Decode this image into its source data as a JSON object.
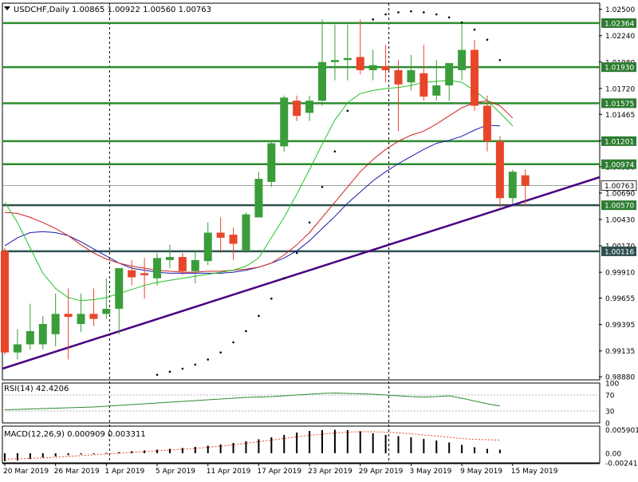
{
  "header": {
    "symbol": "USDCHF,Daily",
    "ohlc": "1.00865 1.00922 1.00560 1.00763",
    "menu_icon": "triangle-down-icon"
  },
  "colors": {
    "background": "#ffffff",
    "grid": "#000000",
    "bull": "#3a9d3a",
    "bear": "#e8462a",
    "ma_fast": "#22c422",
    "ma_mid": "#cc2222",
    "ma_slow": "#1a1aaa",
    "level": "#2e8b2e",
    "level_dark": "#2f4f4f",
    "trendline": "#4b0082",
    "sar": "#000000",
    "price_tag": "#2e7d32",
    "current_tag": "#ffffff"
  },
  "chart_data": [
    {
      "type": "candlestick",
      "title": "USDCHF,Daily",
      "ylim": [
        0.9885,
        1.0256
      ],
      "y_ticks": [
        "1.02500",
        "1.02240",
        "1.01980",
        "1.01720",
        "1.01465",
        "1.01205",
        "1.00950",
        "1.00690",
        "1.00430",
        "1.00170",
        "0.99910",
        "0.99655",
        "0.99395",
        "0.99135",
        "0.98880"
      ],
      "x_labels": [
        "20 Mar 2019",
        "26 Mar 2019",
        "1 Apr 2019",
        "5 Apr 2019",
        "11 Apr 2019",
        "17 Apr 2019",
        "23 Apr 2019",
        "29 Apr 2019",
        "3 May 2019",
        "9 May 2019",
        "15 May 2019"
      ],
      "candles": [
        {
          "o": 1.0012,
          "h": 1.0015,
          "l": 0.991,
          "c": 0.9912
        },
        {
          "o": 0.9912,
          "h": 0.9935,
          "l": 0.9905,
          "c": 0.992
        },
        {
          "o": 0.992,
          "h": 0.996,
          "l": 0.9915,
          "c": 0.9933
        },
        {
          "o": 0.992,
          "h": 0.9948,
          "l": 0.9915,
          "c": 0.994
        },
        {
          "o": 0.993,
          "h": 0.997,
          "l": 0.9918,
          "c": 0.995
        },
        {
          "o": 0.995,
          "h": 0.9975,
          "l": 0.9905,
          "c": 0.9947
        },
        {
          "o": 0.994,
          "h": 0.997,
          "l": 0.9932,
          "c": 0.995
        },
        {
          "o": 0.995,
          "h": 0.9975,
          "l": 0.9938,
          "c": 0.9945
        },
        {
          "o": 0.995,
          "h": 0.9985,
          "l": 0.9945,
          "c": 0.9955
        },
        {
          "o": 0.9955,
          "h": 0.9995,
          "l": 0.993,
          "c": 0.9995
        },
        {
          "o": 0.9993,
          "h": 1.0003,
          "l": 0.9978,
          "c": 0.9986
        },
        {
          "o": 0.999,
          "h": 1.0005,
          "l": 0.9965,
          "c": 0.9988
        },
        {
          "o": 0.9985,
          "h": 1.001,
          "l": 0.9978,
          "c": 1.0005
        },
        {
          "o": 1.0003,
          "h": 1.0018,
          "l": 0.9995,
          "c": 1.0006
        },
        {
          "o": 1.0006,
          "h": 1.001,
          "l": 0.9988,
          "c": 0.9992
        },
        {
          "o": 0.9992,
          "h": 1.0012,
          "l": 0.998,
          "c": 1.0003
        },
        {
          "o": 1.0002,
          "h": 1.004,
          "l": 0.9998,
          "c": 1.003
        },
        {
          "o": 1.003,
          "h": 1.0045,
          "l": 1.001,
          "c": 1.0025
        },
        {
          "o": 1.0028,
          "h": 1.0035,
          "l": 1.0003,
          "c": 1.0019
        },
        {
          "o": 1.0012,
          "h": 1.005,
          "l": 1.001,
          "c": 1.0048
        },
        {
          "o": 1.0045,
          "h": 1.009,
          "l": 1.0045,
          "c": 1.0083
        },
        {
          "o": 1.008,
          "h": 1.012,
          "l": 1.0075,
          "c": 1.0118
        },
        {
          "o": 1.0115,
          "h": 1.0165,
          "l": 1.011,
          "c": 1.0163
        },
        {
          "o": 1.016,
          "h": 1.0165,
          "l": 1.014,
          "c": 1.0145
        },
        {
          "o": 1.0148,
          "h": 1.0165,
          "l": 1.014,
          "c": 1.016
        },
        {
          "o": 1.016,
          "h": 1.024,
          "l": 1.0155,
          "c": 1.0198
        },
        {
          "o": 1.0198,
          "h": 1.0235,
          "l": 1.018,
          "c": 1.02
        },
        {
          "o": 1.02,
          "h": 1.0235,
          "l": 1.018,
          "c": 1.0202
        },
        {
          "o": 1.0203,
          "h": 1.024,
          "l": 1.0186,
          "c": 1.019
        },
        {
          "o": 1.019,
          "h": 1.021,
          "l": 1.018,
          "c": 1.0195
        },
        {
          "o": 1.0194,
          "h": 1.0215,
          "l": 1.0178,
          "c": 1.019
        },
        {
          "o": 1.019,
          "h": 1.02,
          "l": 1.013,
          "c": 1.0176
        },
        {
          "o": 1.0178,
          "h": 1.0205,
          "l": 1.017,
          "c": 1.019
        },
        {
          "o": 1.0187,
          "h": 1.0215,
          "l": 1.016,
          "c": 1.0164
        },
        {
          "o": 1.0165,
          "h": 1.02,
          "l": 1.016,
          "c": 1.0175
        },
        {
          "o": 1.0175,
          "h": 1.0195,
          "l": 1.016,
          "c": 1.0197
        },
        {
          "o": 1.019,
          "h": 1.0235,
          "l": 1.018,
          "c": 1.021
        },
        {
          "o": 1.021,
          "h": 1.022,
          "l": 1.015,
          "c": 1.0155
        },
        {
          "o": 1.0155,
          "h": 1.0165,
          "l": 1.011,
          "c": 1.012
        },
        {
          "o": 1.012,
          "h": 1.0125,
          "l": 1.0055,
          "c": 1.0064
        },
        {
          "o": 1.0064,
          "h": 1.0092,
          "l": 1.0058,
          "c": 1.009
        },
        {
          "o": 1.00865,
          "h": 1.00922,
          "l": 1.0056,
          "c": 1.00763
        }
      ],
      "ma_fast": [
        1.006,
        1.004,
        1.0015,
        0.999,
        0.9975,
        0.9966,
        0.9963,
        0.9964,
        0.9966,
        0.997,
        0.9974,
        0.9978,
        0.9981,
        0.9983,
        0.9985,
        0.9987,
        0.9989,
        0.9991,
        0.9993,
        0.9997,
        1.0005,
        1.0025,
        1.0045,
        1.0068,
        1.0092,
        1.0117,
        1.0141,
        1.0158,
        1.0167,
        1.017,
        1.0172,
        1.0173,
        1.0175,
        1.0178,
        1.0179,
        1.018,
        1.0178,
        1.017,
        1.016,
        1.0148,
        1.0135
      ],
      "ma_mid": [
        1.005,
        1.0049,
        1.0045,
        1.004,
        1.0034,
        1.0027,
        1.0018,
        1.001,
        1.0004,
        1.0,
        0.9997,
        0.9995,
        0.9993,
        0.9992,
        0.9991,
        0.9991,
        0.9992,
        0.9992,
        0.9993,
        0.9994,
        0.9996,
        1.0,
        1.0008,
        1.0018,
        1.003,
        1.0045,
        1.006,
        1.0075,
        1.009,
        1.0102,
        1.0112,
        1.012,
        1.0126,
        1.013,
        1.0137,
        1.0145,
        1.0153,
        1.0158,
        1.016,
        1.0155,
        1.0143
      ],
      "ma_slow": [
        1.0017,
        1.0025,
        1.003,
        1.0031,
        1.003,
        1.0027,
        1.0021,
        1.0014,
        1.0007,
        1.0,
        0.9995,
        0.9993,
        0.9991,
        0.999,
        0.999,
        0.999,
        0.999,
        0.999,
        0.9991,
        0.9993,
        0.9996,
        1.0,
        1.0005,
        1.0012,
        1.0022,
        1.0034,
        1.0046,
        1.0059,
        1.007,
        1.0081,
        1.009,
        1.0098,
        1.0105,
        1.0112,
        1.0118,
        1.0121,
        1.0125,
        1.0131,
        1.0136,
        1.0135
      ],
      "sar": [
        0.989,
        0.9893,
        0.9896,
        0.99,
        0.9905,
        0.9912,
        0.9922,
        0.9933,
        0.9948,
        0.9965,
        0.9985,
        1.001,
        1.004,
        1.0075,
        1.011,
        1.015,
        1.0195,
        1.024,
        1.0245,
        1.0247,
        1.0248,
        1.0247,
        1.0245,
        1.0242,
        1.0237,
        1.023,
        1.022,
        1.02
      ],
      "levels": [
        {
          "label": "1.02364",
          "value": 1.02364
        },
        {
          "label": "1.01930",
          "value": 1.0193
        },
        {
          "label": "1.01575",
          "value": 1.01575
        },
        {
          "label": "1.01201",
          "value": 1.01201
        },
        {
          "label": "1.00974",
          "value": 1.00974
        },
        {
          "label": "1.00570",
          "value": 1.0057
        },
        {
          "label": "1.00116",
          "value": 1.00116
        }
      ],
      "current_price": {
        "label": "1.00763",
        "value": 1.00763
      }
    },
    {
      "type": "line",
      "title": "RSI(14) 42.4206",
      "ylim": [
        0,
        100
      ],
      "y_ticks": [
        "100",
        "70",
        "30",
        "0"
      ],
      "levels": [
        70,
        30
      ],
      "values": [
        33,
        34,
        35,
        36,
        37,
        38,
        39,
        40,
        42,
        44,
        46,
        48,
        50,
        52,
        54,
        56,
        58,
        60,
        62,
        64,
        65,
        66,
        68,
        70,
        72,
        74,
        75,
        74,
        73,
        72,
        70,
        68,
        66,
        65,
        66,
        68,
        62,
        55,
        48,
        42.42
      ]
    },
    {
      "type": "bar",
      "title": "MACD(12,26,9) 0.000909 0.003311",
      "ylim": [
        -0.002417,
        0.0068
      ],
      "y_ticks": [
        "0.005901",
        "0.00",
        "-0.002417"
      ],
      "histogram": [
        -0.002,
        -0.0018,
        -0.0015,
        -0.0011,
        -0.0008,
        -0.0005,
        -0.0003,
        -0.0001,
        0.0001,
        0.0003,
        0.0005,
        0.0007,
        0.0009,
        0.0011,
        0.0013,
        0.0016,
        0.0019,
        0.0022,
        0.0026,
        0.003,
        0.0035,
        0.004,
        0.0046,
        0.0052,
        0.0056,
        0.0058,
        0.0059,
        0.0058,
        0.0055,
        0.005,
        0.0046,
        0.0043,
        0.004,
        0.0036,
        0.0032,
        0.0027,
        0.0021,
        0.0015,
        0.0011,
        0.0009
      ],
      "signal": [
        -0.0015,
        -0.0014,
        -0.0013,
        -0.0012,
        -0.001,
        -0.0008,
        -0.0006,
        -0.0004,
        -0.0002,
        0.0,
        0.0002,
        0.0004,
        0.0006,
        0.0008,
        0.001,
        0.0012,
        0.0015,
        0.0018,
        0.0021,
        0.0025,
        0.0029,
        0.0033,
        0.0037,
        0.0041,
        0.0045,
        0.0048,
        0.0051,
        0.0053,
        0.0054,
        0.0054,
        0.0053,
        0.0051,
        0.0049,
        0.0046,
        0.0043,
        0.004,
        0.0037,
        0.0035,
        0.0034,
        0.0033
      ]
    }
  ]
}
